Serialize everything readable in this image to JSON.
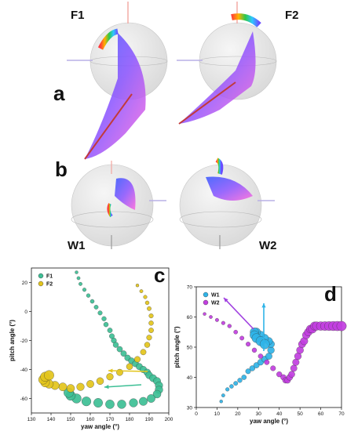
{
  "figure": {
    "panel_letters": {
      "a": "a",
      "b": "b",
      "c": "c",
      "d": "d"
    },
    "wing_labels": {
      "f1": "F1",
      "f2": "F2",
      "w1": "W1",
      "w2": "W2"
    },
    "illustration_colors": {
      "sphere": "#e6e6e6",
      "blade": "#a45ce0",
      "root": "#c23a3a",
      "arrow": "#b9b0e6"
    }
  },
  "chart_data": [
    {
      "panel": "c",
      "type": "scatter",
      "xlabel": "yaw angle (°)",
      "ylabel": "pitch angle (°)",
      "xlim": [
        130,
        200
      ],
      "ylim": [
        -70,
        30
      ],
      "xticks": [
        130,
        140,
        150,
        160,
        170,
        180,
        190,
        200
      ],
      "yticks": [
        -60,
        -40,
        -20,
        0,
        20
      ],
      "legend_position": "top-left",
      "series": [
        {
          "name": "F1",
          "color": "#3dbf95",
          "x": [
            153,
            154,
            155,
            157,
            159,
            161,
            163,
            165,
            167,
            168,
            170,
            171,
            172,
            173,
            175,
            177,
            179,
            181,
            183,
            185,
            187,
            189,
            190,
            192,
            194,
            195,
            195,
            194,
            191,
            187,
            182,
            176,
            170,
            164,
            158,
            153,
            150,
            149
          ],
          "y": [
            27,
            23,
            19,
            15,
            11,
            7,
            3,
            -1,
            -5,
            -9,
            -13,
            -17,
            -20,
            -23,
            -26,
            -29,
            -32,
            -34,
            -36,
            -38,
            -40,
            -42,
            -44,
            -46,
            -48,
            -51,
            -54,
            -57,
            -60,
            -62,
            -63,
            -64,
            -64,
            -63,
            -62,
            -60,
            -58,
            -56
          ]
        },
        {
          "name": "F2",
          "color": "#e3c51c",
          "x": [
            184,
            186,
            188,
            189,
            190,
            191,
            191,
            191,
            190,
            189,
            187,
            184,
            180,
            175,
            170,
            165,
            160,
            155,
            150,
            146,
            142,
            139,
            137,
            136,
            137,
            139
          ],
          "y": [
            18,
            14,
            10,
            6,
            2,
            -3,
            -8,
            -13,
            -18,
            -23,
            -28,
            -33,
            -38,
            -42,
            -45,
            -48,
            -50,
            -52,
            -53,
            -52,
            -51,
            -50,
            -49,
            -47,
            -45,
            -44
          ]
        }
      ]
    },
    {
      "panel": "d",
      "type": "scatter",
      "xlabel": "yaw angle (°)",
      "ylabel": "pitch angle (°)",
      "xlim": [
        0,
        70
      ],
      "ylim": [
        30,
        70
      ],
      "xticks": [
        0,
        10,
        20,
        30,
        40,
        50,
        60,
        70
      ],
      "yticks": [
        30,
        40,
        50,
        60,
        70
      ],
      "legend_position": "top-left",
      "series": [
        {
          "name": "W1",
          "color": "#2fb4e8",
          "x": [
            12,
            13,
            15,
            17,
            19,
            21,
            23,
            25,
            27,
            29,
            31,
            33,
            35,
            36,
            36,
            35,
            33,
            31,
            29,
            28,
            28,
            29,
            31,
            33
          ],
          "y": [
            32,
            34,
            36,
            37,
            38,
            39,
            40,
            42,
            43,
            44,
            45,
            46,
            47,
            49,
            51,
            52,
            53,
            54,
            55,
            55,
            54,
            53,
            52,
            51
          ]
        },
        {
          "name": "W2",
          "color": "#c23ee0",
          "x": [
            4,
            7,
            10,
            13,
            16,
            19,
            22,
            25,
            28,
            31,
            34,
            37,
            40,
            42,
            43,
            44,
            45,
            46,
            47,
            48,
            49,
            50,
            51,
            52,
            53,
            54,
            55,
            56,
            57,
            58,
            60,
            62,
            64,
            66,
            68,
            70
          ],
          "y": [
            61,
            60,
            59,
            58,
            57,
            55,
            53,
            51,
            49,
            47,
            45,
            43,
            41,
            40,
            39,
            39,
            40,
            41,
            43,
            45,
            47,
            49,
            51,
            52,
            54,
            55,
            56,
            56,
            57,
            57,
            57,
            57,
            57,
            57,
            57,
            57
          ]
        }
      ]
    }
  ]
}
